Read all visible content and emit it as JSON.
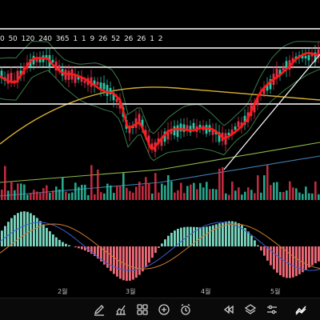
{
  "ma_periods": [
    "0",
    "50",
    "120",
    "240",
    "365",
    "1",
    "1",
    "9",
    "26",
    "52",
    "26",
    "26",
    "1",
    "2"
  ],
  "x_axis": {
    "month_labels": [
      "2월",
      "3월",
      "4월",
      "5월"
    ]
  },
  "colors": {
    "background": "#000000",
    "candle_up": "#2ec4a6",
    "candle_down": "#e0334a",
    "ma_short": "#ff1a1a",
    "ma_mid": "#d8b030",
    "ma_long": "#8fb84a",
    "ma_longest": "#3f7fb0",
    "bollinger": "#3a7a4a",
    "hist_up": "#7ad8c0",
    "hist_down": "#f06a78",
    "macd": "#3a5fd0",
    "signal": "#d07a30",
    "horizontal_lines": "#ffffff"
  },
  "toolbar": [
    {
      "name": "draw-pen-icon"
    },
    {
      "name": "indicator-icon"
    },
    {
      "name": "layout-grid-icon"
    },
    {
      "name": "add-icon"
    },
    {
      "name": "alarm-icon"
    },
    {
      "name": "replay-icon"
    },
    {
      "name": "layers-icon"
    },
    {
      "name": "settings-sliders-icon"
    },
    {
      "name": "chart-style-icon"
    }
  ]
}
